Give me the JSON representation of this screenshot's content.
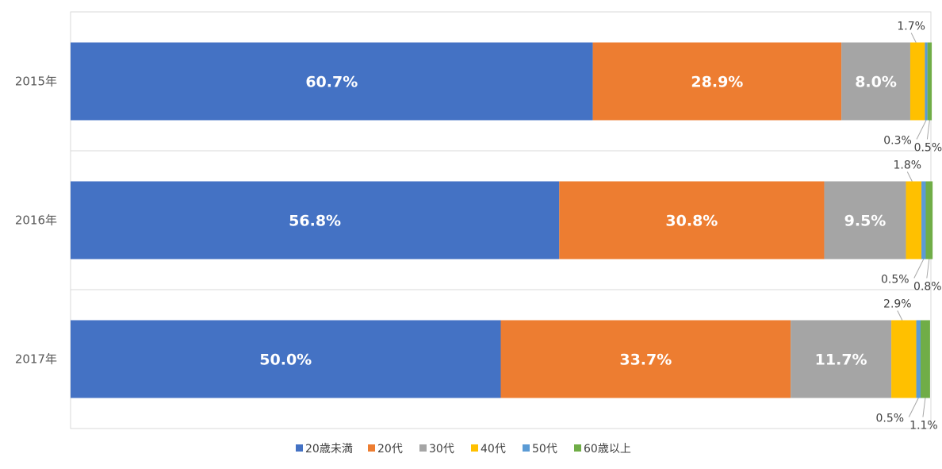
{
  "chart_data": {
    "type": "bar",
    "orientation": "horizontal",
    "stacked": true,
    "stack_mode": "percent",
    "categories": [
      "2015年",
      "2016年",
      "2017年"
    ],
    "xlim": [
      0,
      100
    ],
    "grid": true,
    "legend_position": "bottom",
    "series": [
      {
        "name": "20歳未満",
        "color": "#4472C4",
        "values": [
          60.7,
          56.8,
          50.0
        ],
        "labels": [
          "60.7%",
          "56.8%",
          "50.0%"
        ]
      },
      {
        "name": "20代",
        "color": "#ED7D31",
        "values": [
          28.9,
          30.8,
          33.7
        ],
        "labels": [
          "28.9%",
          "30.8%",
          "33.7%"
        ]
      },
      {
        "name": "30代",
        "color": "#A5A5A5",
        "values": [
          8.0,
          9.5,
          11.7
        ],
        "labels": [
          "8.0%",
          "9.5%",
          "11.7%"
        ]
      },
      {
        "name": "40代",
        "color": "#FFC000",
        "values": [
          1.7,
          1.8,
          2.9
        ],
        "labels": [
          "1.7%",
          "1.8%",
          "2.9%"
        ]
      },
      {
        "name": "50代",
        "color": "#5B9BD5",
        "values": [
          0.3,
          0.5,
          0.5
        ],
        "labels": [
          "0.3%",
          "0.5%",
          "0.5%"
        ]
      },
      {
        "name": "60歳以上",
        "color": "#70AD47",
        "values": [
          0.5,
          0.8,
          1.1
        ],
        "labels": [
          "0.5%",
          "0.8%",
          "1.1%"
        ]
      }
    ]
  }
}
